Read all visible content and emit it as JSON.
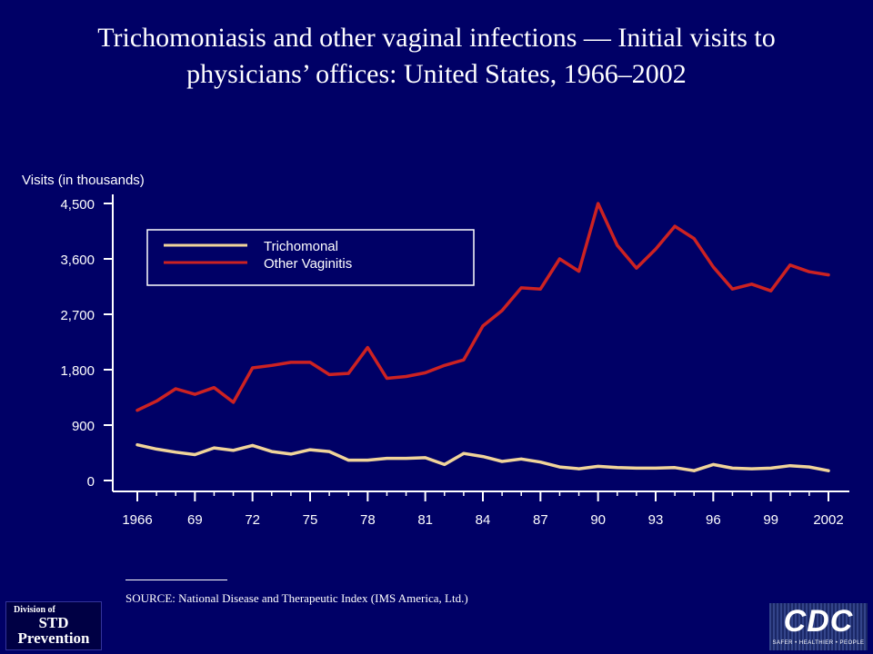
{
  "title": "Trichomoniasis and other vaginal infections — Initial visits to physicians’ offices: United States, 1966–2002",
  "source_text": "SOURCE: National Disease and Therapeutic Index (IMS America, Ltd.)",
  "logos": {
    "std_line1": "Division of",
    "std_line2": "STD",
    "std_line3": "Prevention",
    "cdc": "CDC",
    "cdc_tagline": "SAFER • HEALTHIER • PEOPLE"
  },
  "chart_data": {
    "type": "line",
    "title": "",
    "ylabel": "Visits (in thousands)",
    "xlabel": "",
    "x": [
      1966,
      1967,
      1968,
      1969,
      1970,
      1971,
      1972,
      1973,
      1974,
      1975,
      1976,
      1977,
      1978,
      1979,
      1980,
      1981,
      1982,
      1983,
      1984,
      1985,
      1986,
      1987,
      1988,
      1989,
      1990,
      1991,
      1992,
      1993,
      1994,
      1995,
      1996,
      1997,
      1998,
      1999,
      2000,
      2001,
      2002
    ],
    "xticks": [
      1966,
      1969,
      1972,
      1975,
      1978,
      1981,
      1984,
      1987,
      1990,
      1993,
      1996,
      1999,
      2002
    ],
    "xtick_labels": [
      "1966",
      "69",
      "72",
      "75",
      "78",
      "81",
      "84",
      "87",
      "90",
      "93",
      "96",
      "99",
      "2002"
    ],
    "xlim": [
      1966,
      2002
    ],
    "ylim": [
      0,
      4500
    ],
    "yticks": [
      0,
      900,
      1800,
      2700,
      3600,
      4500
    ],
    "ytick_labels": [
      "0",
      "900",
      "1,800",
      "2,700",
      "3,600",
      "4,500"
    ],
    "grid": false,
    "legend_position": "top-left",
    "series": [
      {
        "name": "Trichomonal",
        "color": "#f0d49a",
        "values": [
          580,
          510,
          460,
          420,
          530,
          490,
          570,
          470,
          430,
          500,
          470,
          330,
          330,
          360,
          360,
          370,
          260,
          440,
          390,
          310,
          350,
          300,
          220,
          190,
          230,
          210,
          200,
          200,
          210,
          160,
          260,
          200,
          190,
          200,
          240,
          220,
          160
        ]
      },
      {
        "name": "Other Vaginitis",
        "color": "#cc2222",
        "values": [
          1140,
          1290,
          1490,
          1400,
          1510,
          1270,
          1830,
          1870,
          1920,
          1920,
          1720,
          1740,
          2160,
          1660,
          1690,
          1750,
          1870,
          1960,
          2510,
          2760,
          3130,
          3110,
          3600,
          3400,
          4500,
          3820,
          3450,
          3760,
          4130,
          3930,
          3470,
          3110,
          3190,
          3080,
          3500,
          3390,
          3340
        ]
      }
    ]
  }
}
